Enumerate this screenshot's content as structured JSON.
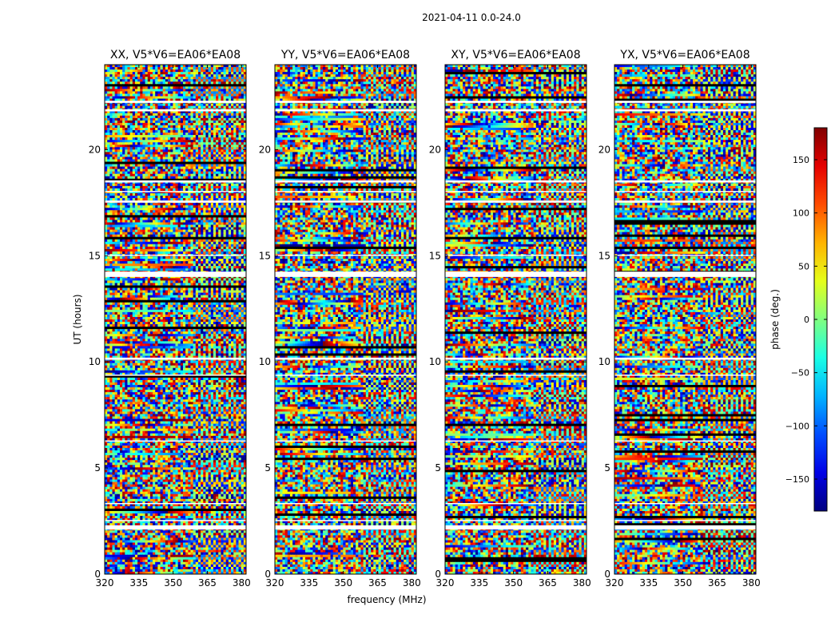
{
  "chart_data": {
    "type": "heatmap",
    "suptitle": "2021-04-11 0.0-24.0",
    "xlabel": "frequency (MHz)",
    "ylabel": "UT (hours)",
    "xlim": [
      320,
      382
    ],
    "ylim": [
      0,
      24
    ],
    "xticks": [
      320,
      335,
      350,
      365,
      380
    ],
    "yticks": [
      0,
      5,
      10,
      15,
      20
    ],
    "panels": [
      {
        "title": "XX, V5*V6=EA06*EA08",
        "polarization": "XX",
        "seed": 11
      },
      {
        "title": "YY, V5*V6=EA06*EA08",
        "polarization": "YY",
        "seed": 23
      },
      {
        "title": "XY, V5*V6=EA06*EA08",
        "polarization": "XY",
        "seed": 37
      },
      {
        "title": "YX, V5*V6=EA06*EA08",
        "polarization": "YX",
        "seed": 53
      }
    ],
    "colorbar": {
      "label": "phase (deg.)",
      "range": [
        -180,
        180
      ],
      "ticks": [
        150,
        100,
        50,
        0,
        -50,
        -100,
        -150
      ],
      "tick_labels": [
        "150",
        "100",
        "50",
        "0",
        "−50",
        "−100",
        "−150"
      ],
      "colormap": "jet"
    },
    "data_gaps_hours": [
      [
        2.1,
        2.3
      ],
      [
        2.5,
        2.55
      ],
      [
        14.0,
        14.25
      ],
      [
        10.1,
        10.2
      ],
      [
        18.45,
        18.55
      ],
      [
        17.5,
        17.6
      ],
      [
        18.0,
        18.05
      ],
      [
        21.8,
        21.9
      ],
      [
        22.2,
        22.3
      ],
      [
        3.3,
        3.35
      ],
      [
        6.25,
        6.3
      ],
      [
        9.35,
        9.4
      ],
      [
        15.0,
        15.05
      ]
    ]
  }
}
